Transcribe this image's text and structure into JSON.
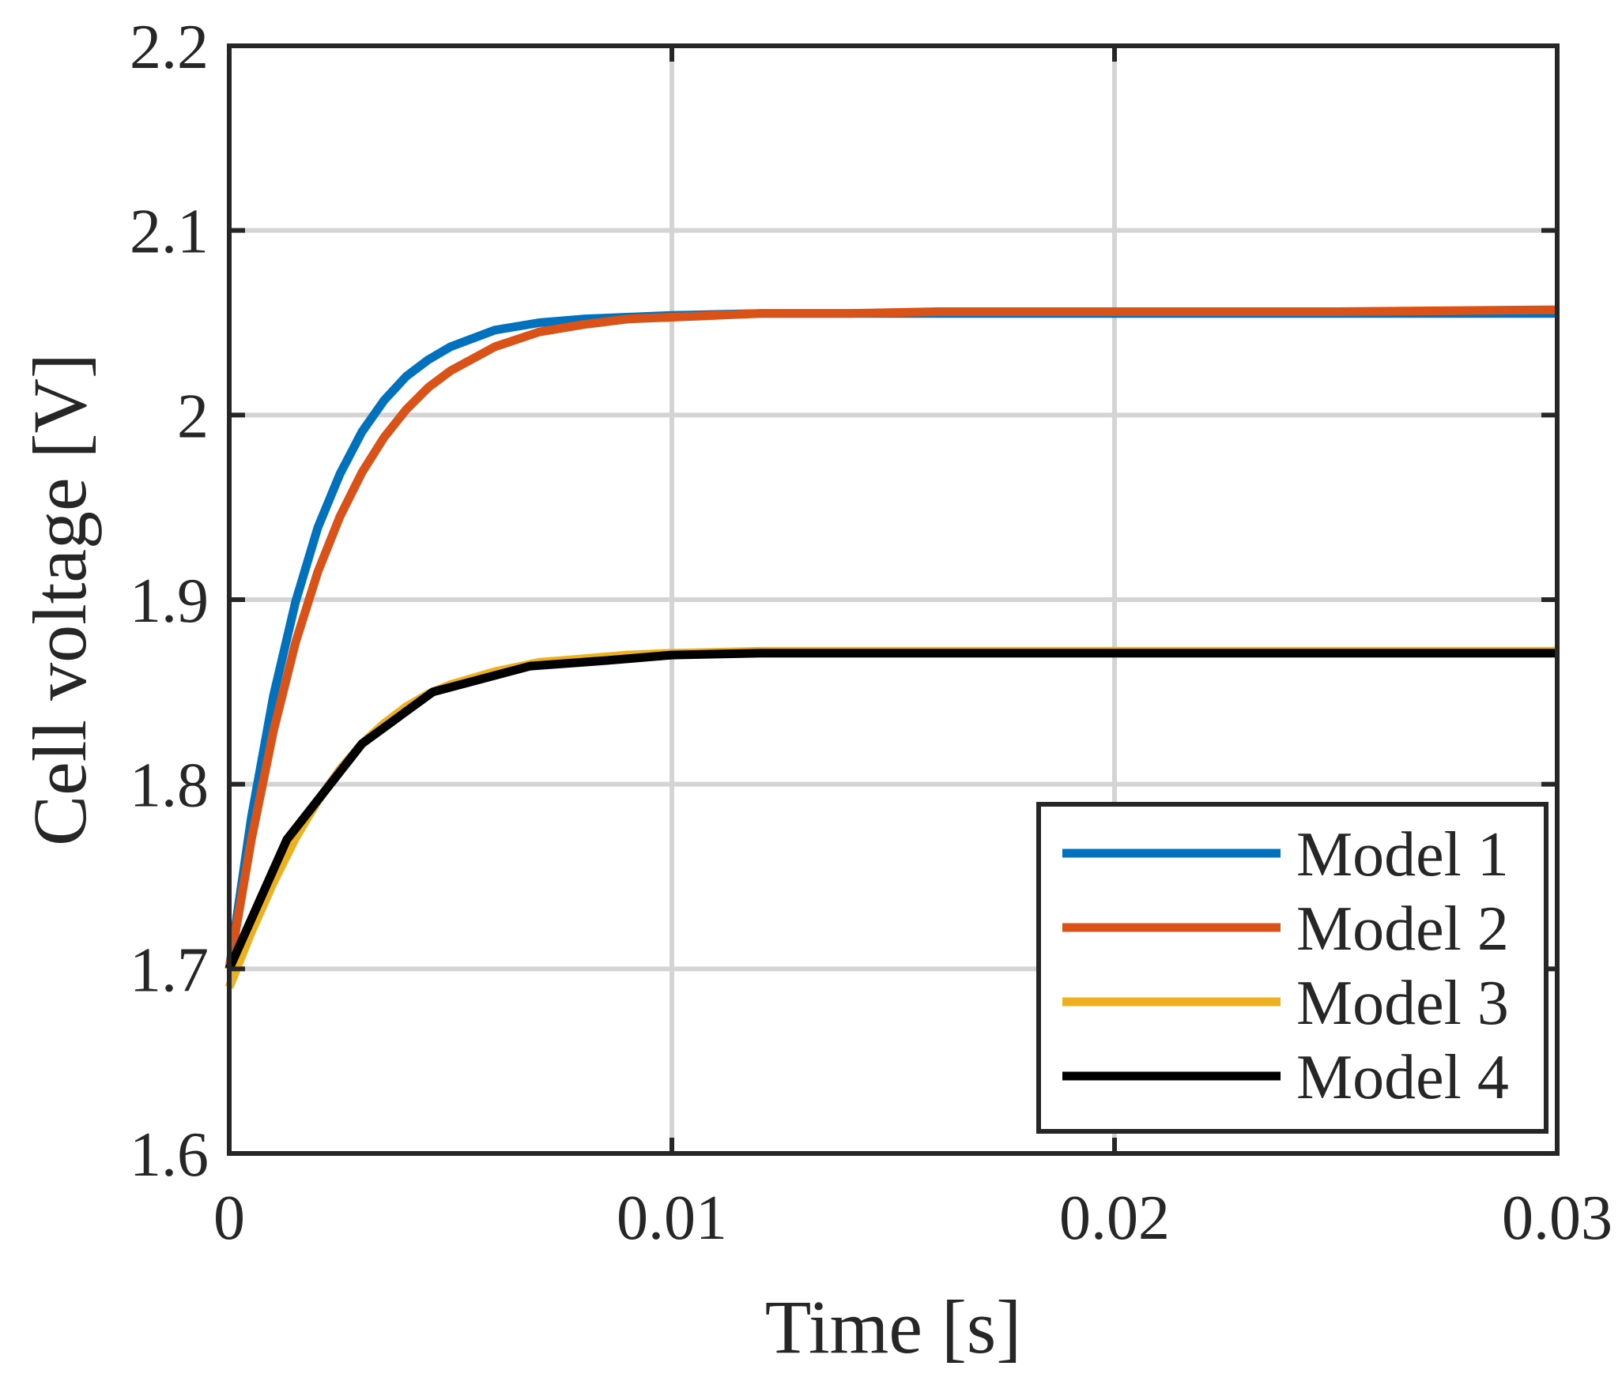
{
  "chart_data": {
    "type": "line",
    "xlabel": "Time [s]",
    "ylabel": "Cell voltage [V]",
    "xlim": [
      0,
      0.03
    ],
    "ylim": [
      1.6,
      2.2
    ],
    "xticks": [
      0,
      0.01,
      0.02,
      0.03
    ],
    "xtick_labels": [
      "0",
      "0.01",
      "0.02",
      "0.03"
    ],
    "yticks": [
      1.6,
      1.7,
      1.8,
      1.9,
      2.0,
      2.1,
      2.2
    ],
    "ytick_labels": [
      "1.6",
      "1.7",
      "1.8",
      "1.9",
      "2",
      "2.1",
      "2.2"
    ],
    "grid": true,
    "legend_position": "bottom-right",
    "series": [
      {
        "name": "Model 1",
        "color": "#0072BD",
        "x": [
          0,
          0.0005,
          0.001,
          0.0015,
          0.002,
          0.0025,
          0.003,
          0.0035,
          0.004,
          0.0045,
          0.005,
          0.006,
          0.007,
          0.008,
          0.009,
          0.01,
          0.012,
          0.014,
          0.016,
          0.018,
          0.02,
          0.025,
          0.03
        ],
        "y": [
          1.7,
          1.782,
          1.848,
          1.899,
          1.939,
          1.968,
          1.991,
          2.008,
          2.021,
          2.03,
          2.037,
          2.046,
          2.05,
          2.052,
          2.053,
          2.054,
          2.055,
          2.055,
          2.055,
          2.055,
          2.055,
          2.055,
          2.055
        ]
      },
      {
        "name": "Model 2",
        "color": "#D95319",
        "x": [
          0,
          0.0005,
          0.001,
          0.0015,
          0.002,
          0.0025,
          0.003,
          0.0035,
          0.004,
          0.0045,
          0.005,
          0.006,
          0.007,
          0.008,
          0.009,
          0.01,
          0.012,
          0.014,
          0.016,
          0.018,
          0.02,
          0.025,
          0.03
        ],
        "y": [
          1.7,
          1.77,
          1.829,
          1.877,
          1.915,
          1.945,
          1.969,
          1.988,
          2.003,
          2.015,
          2.024,
          2.037,
          2.045,
          2.049,
          2.052,
          2.053,
          2.055,
          2.055,
          2.056,
          2.056,
          2.056,
          2.056,
          2.057
        ]
      },
      {
        "name": "Model 3",
        "color": "#EDB120",
        "x": [
          0,
          0.0005,
          0.001,
          0.0015,
          0.002,
          0.0025,
          0.003,
          0.0035,
          0.004,
          0.0045,
          0.005,
          0.006,
          0.007,
          0.008,
          0.009,
          0.01,
          0.012,
          0.014,
          0.016,
          0.018,
          0.02,
          0.025,
          0.03
        ],
        "y": [
          1.69,
          1.72,
          1.747,
          1.771,
          1.791,
          1.808,
          1.822,
          1.833,
          1.842,
          1.849,
          1.854,
          1.861,
          1.866,
          1.868,
          1.87,
          1.871,
          1.872,
          1.872,
          1.872,
          1.872,
          1.872,
          1.872,
          1.872
        ]
      },
      {
        "name": "Model 4",
        "color": "#000000",
        "x": [
          0,
          0.0013,
          0.003,
          0.0046,
          0.0068,
          0.0085,
          0.01,
          0.012,
          0.015,
          0.02,
          0.025,
          0.03
        ],
        "y": [
          1.7,
          1.77,
          1.822,
          1.85,
          1.864,
          1.867,
          1.87,
          1.871,
          1.871,
          1.871,
          1.871,
          1.871
        ]
      }
    ]
  }
}
